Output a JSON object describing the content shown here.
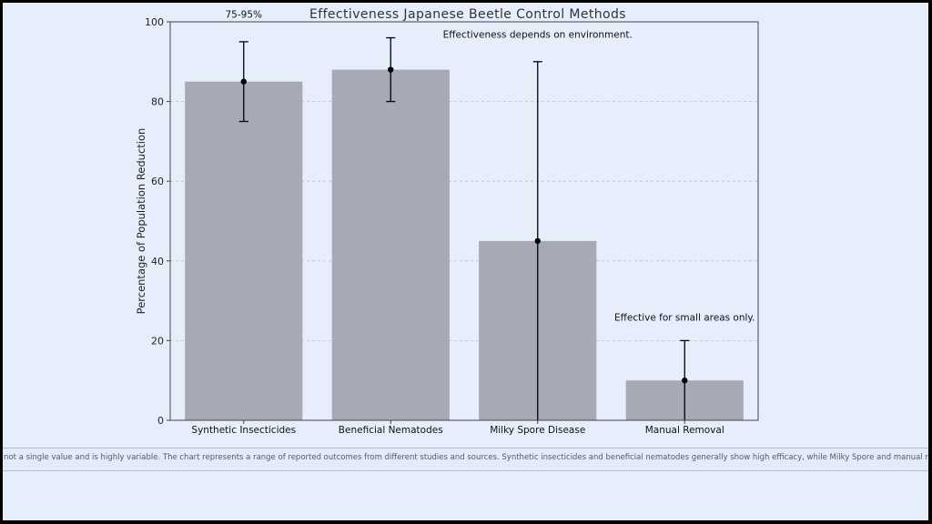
{
  "chart_data": {
    "type": "bar",
    "title": "Effectiveness Japanese Beetle Control Methods",
    "xlabel": "",
    "ylabel": "Percentage of Population Reduction",
    "categories": [
      "Synthetic Insecticides",
      "Beneficial Nematodes",
      "Milky Spore Disease",
      "Manual Removal"
    ],
    "values": [
      85,
      88,
      45,
      10
    ],
    "error_low": [
      75,
      80,
      0,
      0
    ],
    "error_high": [
      95,
      96,
      90,
      20
    ],
    "ylim": [
      0,
      100
    ],
    "yticks": [
      "0",
      "20",
      "40",
      "60",
      "80",
      "100"
    ],
    "grid": "horizontal dashed",
    "bar_color": "#a7aab5",
    "annotations": [
      {
        "text": "75-95%",
        "category": "Synthetic Insecticides",
        "y": 101
      },
      {
        "text": "Effectiveness depends on environment.",
        "category": "Milky Spore Disease",
        "y": 96
      },
      {
        "text": "Effective for small areas only.",
        "category": "Manual Removal",
        "y": 25
      }
    ]
  },
  "caption": "ss is not a single value and is highly variable. The chart represents a range of reported outcomes from different studies and sources. Synthetic insecticides and beneficial nematodes generally show high efficacy, while Milky Spore and manual removal are"
}
